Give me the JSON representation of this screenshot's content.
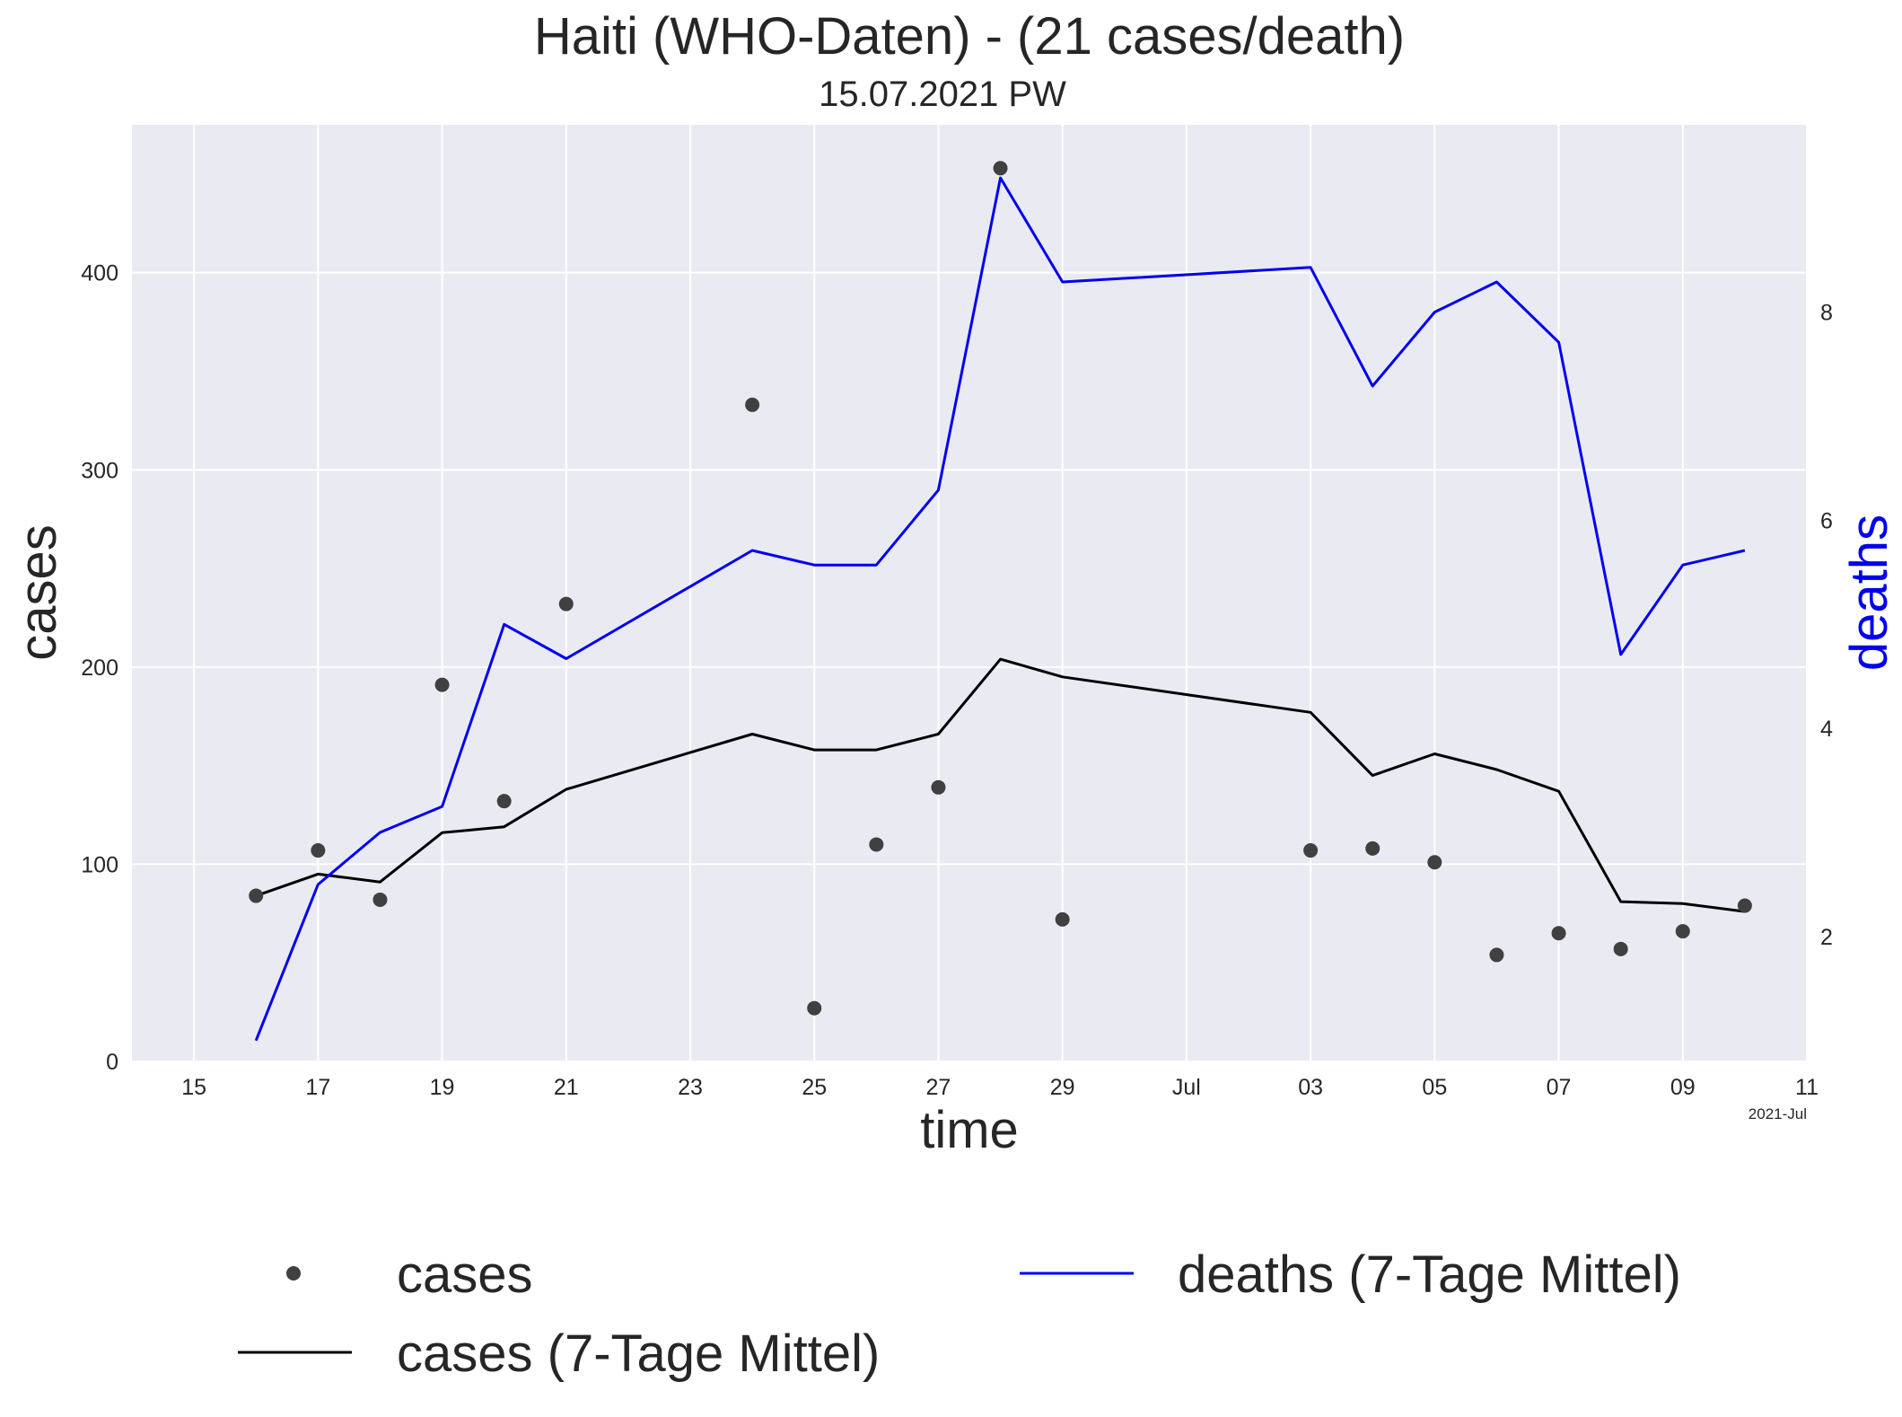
{
  "chart_data": {
    "type": "line",
    "title": "Haiti (WHO-Daten) - (21 cases/death)",
    "subtitle": "15.07.2021 PW",
    "xlabel": "time",
    "ylabel_left": "cases",
    "ylabel_right": "deaths",
    "x_range": [
      "2021-06-14",
      "2021-07-11"
    ],
    "x_ticks": [
      {
        "date": "2021-06-15",
        "label": "15"
      },
      {
        "date": "2021-06-17",
        "label": "17"
      },
      {
        "date": "2021-06-19",
        "label": "19"
      },
      {
        "date": "2021-06-21",
        "label": "21"
      },
      {
        "date": "2021-06-23",
        "label": "23"
      },
      {
        "date": "2021-06-25",
        "label": "25"
      },
      {
        "date": "2021-06-27",
        "label": "27"
      },
      {
        "date": "2021-06-29",
        "label": "29"
      },
      {
        "date": "2021-07-01",
        "label": "Jul"
      },
      {
        "date": "2021-07-03",
        "label": "03"
      },
      {
        "date": "2021-07-05",
        "label": "05"
      },
      {
        "date": "2021-07-07",
        "label": "07"
      },
      {
        "date": "2021-07-09",
        "label": "09"
      },
      {
        "date": "2021-07-11",
        "label": "11"
      }
    ],
    "x_offset_label": "2021-Jul",
    "ylim_left": [
      0,
      475
    ],
    "yticks_left": [
      0,
      100,
      200,
      300,
      400
    ],
    "ylim_right": [
      0.8,
      9.8
    ],
    "yticks_right": [
      2,
      4,
      6,
      8
    ],
    "grid": true,
    "legend_position": "bottom",
    "series": [
      {
        "name": "cases",
        "kind": "scatter",
        "axis": "left",
        "color": "#404040",
        "points": [
          {
            "x": "2021-06-16",
            "y": 84
          },
          {
            "x": "2021-06-17",
            "y": 107
          },
          {
            "x": "2021-06-18",
            "y": 82
          },
          {
            "x": "2021-06-19",
            "y": 191
          },
          {
            "x": "2021-06-20",
            "y": 132
          },
          {
            "x": "2021-06-21",
            "y": 232
          },
          {
            "x": "2021-06-24",
            "y": 333
          },
          {
            "x": "2021-06-25",
            "y": 27
          },
          {
            "x": "2021-06-26",
            "y": 110
          },
          {
            "x": "2021-06-27",
            "y": 139
          },
          {
            "x": "2021-06-28",
            "y": 453
          },
          {
            "x": "2021-06-29",
            "y": 72
          },
          {
            "x": "2021-07-03",
            "y": 107
          },
          {
            "x": "2021-07-04",
            "y": 108
          },
          {
            "x": "2021-07-05",
            "y": 101
          },
          {
            "x": "2021-07-06",
            "y": 54
          },
          {
            "x": "2021-07-07",
            "y": 65
          },
          {
            "x": "2021-07-08",
            "y": 57
          },
          {
            "x": "2021-07-09",
            "y": 66
          },
          {
            "x": "2021-07-10",
            "y": 79
          }
        ]
      },
      {
        "name": "cases (7-Tage Mittel)",
        "kind": "line",
        "axis": "left",
        "color": "#000000",
        "points": [
          {
            "x": "2021-06-16",
            "y": 84
          },
          {
            "x": "2021-06-17",
            "y": 95
          },
          {
            "x": "2021-06-18",
            "y": 91
          },
          {
            "x": "2021-06-19",
            "y": 116
          },
          {
            "x": "2021-06-20",
            "y": 119
          },
          {
            "x": "2021-06-21",
            "y": 138
          },
          {
            "x": "2021-06-24",
            "y": 166
          },
          {
            "x": "2021-06-25",
            "y": 158
          },
          {
            "x": "2021-06-26",
            "y": 158
          },
          {
            "x": "2021-06-27",
            "y": 166
          },
          {
            "x": "2021-06-28",
            "y": 204
          },
          {
            "x": "2021-06-29",
            "y": 195
          },
          {
            "x": "2021-07-03",
            "y": 177
          },
          {
            "x": "2021-07-04",
            "y": 145
          },
          {
            "x": "2021-07-05",
            "y": 156
          },
          {
            "x": "2021-07-06",
            "y": 148
          },
          {
            "x": "2021-07-07",
            "y": 137
          },
          {
            "x": "2021-07-08",
            "y": 81
          },
          {
            "x": "2021-07-09",
            "y": 80
          },
          {
            "x": "2021-07-10",
            "y": 76
          }
        ]
      },
      {
        "name": "deaths (7-Tage Mittel)",
        "kind": "line",
        "axis": "right",
        "color": "#0000ee",
        "points": [
          {
            "x": "2021-06-16",
            "y": 1.0
          },
          {
            "x": "2021-06-17",
            "y": 2.5
          },
          {
            "x": "2021-06-18",
            "y": 3.0
          },
          {
            "x": "2021-06-19",
            "y": 3.25
          },
          {
            "x": "2021-06-20",
            "y": 5.0
          },
          {
            "x": "2021-06-21",
            "y": 4.67
          },
          {
            "x": "2021-06-24",
            "y": 5.71
          },
          {
            "x": "2021-06-25",
            "y": 5.57
          },
          {
            "x": "2021-06-26",
            "y": 5.57
          },
          {
            "x": "2021-06-27",
            "y": 6.29
          },
          {
            "x": "2021-06-28",
            "y": 9.29
          },
          {
            "x": "2021-06-29",
            "y": 8.29
          },
          {
            "x": "2021-07-03",
            "y": 8.43
          },
          {
            "x": "2021-07-04",
            "y": 7.29
          },
          {
            "x": "2021-07-05",
            "y": 8.0
          },
          {
            "x": "2021-07-06",
            "y": 8.29
          },
          {
            "x": "2021-07-07",
            "y": 7.71
          },
          {
            "x": "2021-07-08",
            "y": 4.71
          },
          {
            "x": "2021-07-09",
            "y": 5.57
          },
          {
            "x": "2021-07-10",
            "y": 5.71
          }
        ]
      }
    ]
  }
}
